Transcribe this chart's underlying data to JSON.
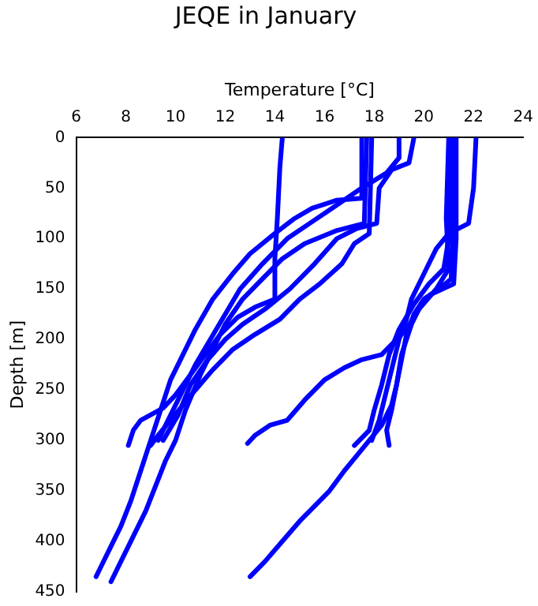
{
  "chart_data": {
    "type": "line",
    "title": "JEQE in January",
    "xlabel": "Temperature [°C]",
    "ylabel": "Depth [m]",
    "xlim": [
      6,
      24
    ],
    "xticks": [
      6,
      8,
      10,
      12,
      14,
      16,
      18,
      20,
      22,
      24
    ],
    "ylim": [
      450,
      0
    ],
    "yticks": [
      0,
      50,
      100,
      150,
      200,
      250,
      300,
      350,
      400,
      450
    ],
    "grid": false,
    "legend": false,
    "marker": "none",
    "line_style": "solid",
    "series": [
      {
        "color": "#0000ff",
        "x": [
          14.3,
          14.2,
          14.1,
          14.0,
          14.0,
          13.2,
          12.5,
          11.8,
          11.2,
          10.6,
          10.0,
          9.5,
          8.6,
          8.3,
          8.1
        ],
        "values": [
          0,
          30,
          80,
          120,
          160,
          168,
          178,
          195,
          215,
          235,
          255,
          268,
          280,
          290,
          305
        ]
      },
      {
        "color": "#0000ff",
        "x": [
          17.5,
          17.5,
          16.5,
          15.5,
          14.8,
          14.0,
          13.0,
          12.3,
          11.5,
          10.8,
          10.3,
          9.8,
          9.4,
          9.0,
          8.6,
          8.2,
          7.8,
          7.4,
          7.0,
          6.8
        ],
        "values": [
          0,
          60,
          62,
          70,
          80,
          95,
          115,
          135,
          160,
          190,
          215,
          240,
          270,
          300,
          330,
          360,
          385,
          405,
          425,
          435
        ]
      },
      {
        "color": "#0000ff",
        "x": [
          17.7,
          17.6,
          16.5,
          15.2,
          14.3,
          13.5,
          12.7,
          12.0,
          11.5,
          11.0,
          10.4,
          10.0,
          9.6,
          9.2,
          8.8,
          8.3,
          7.8,
          7.4
        ],
        "values": [
          0,
          85,
          92,
          105,
          120,
          140,
          160,
          185,
          210,
          235,
          270,
          300,
          320,
          345,
          370,
          395,
          420,
          440
        ]
      },
      {
        "color": "#0000ff",
        "x": [
          17.9,
          17.8,
          17.2,
          16.7,
          15.8,
          15.0,
          14.2,
          13.2,
          12.3,
          11.5,
          10.8,
          10.3,
          9.8,
          9.3,
          9.0
        ],
        "values": [
          0,
          95,
          105,
          125,
          145,
          160,
          180,
          195,
          210,
          230,
          250,
          265,
          280,
          295,
          305
        ]
      },
      {
        "color": "#0000ff",
        "x": [
          19.0,
          19.0,
          18.5,
          17.5,
          16.3,
          15.4,
          14.5,
          13.5,
          12.6,
          12.0,
          11.4,
          10.8,
          10.3,
          9.8,
          9.3
        ],
        "values": [
          0,
          20,
          35,
          50,
          70,
          85,
          100,
          125,
          150,
          175,
          200,
          225,
          250,
          275,
          300
        ]
      },
      {
        "color": "#0000ff",
        "x": [
          19.6,
          19.4,
          18.7,
          18.2,
          18.1,
          17.3,
          16.5,
          15.6,
          14.6,
          13.6,
          12.7,
          12.0,
          11.3,
          10.6,
          10.1,
          9.5
        ],
        "values": [
          0,
          25,
          32,
          50,
          85,
          90,
          100,
          125,
          150,
          170,
          185,
          200,
          220,
          245,
          275,
          300
        ]
      },
      {
        "color": "#0000ff",
        "x": [
          22.1,
          22.0,
          21.8,
          21.0,
          20.5,
          20.2,
          19.9,
          19.5,
          19.3,
          19.0,
          18.8,
          18.6,
          18.4,
          18.2,
          17.9
        ],
        "values": [
          0,
          50,
          85,
          95,
          110,
          125,
          140,
          160,
          180,
          200,
          220,
          240,
          260,
          280,
          300
        ]
      },
      {
        "color": "#0000ff",
        "x": [
          21.2,
          21.2,
          21.1,
          20.6,
          20.0,
          19.6,
          19.3,
          19.1,
          18.9,
          18.7,
          18.3,
          17.8,
          17.3,
          16.8,
          16.2,
          15.6,
          15.0,
          14.3,
          13.6,
          13.0
        ],
        "values": [
          0,
          60,
          140,
          150,
          160,
          175,
          195,
          220,
          245,
          265,
          285,
          300,
          315,
          330,
          350,
          365,
          380,
          400,
          420,
          435
        ]
      },
      {
        "color": "#0000ff",
        "x": [
          21.0,
          20.9,
          21.0,
          20.5,
          19.8,
          19.3,
          18.3,
          17.5,
          16.8,
          16.0,
          15.2,
          14.5,
          13.8,
          13.2,
          12.9
        ],
        "values": [
          0,
          80,
          130,
          150,
          170,
          190,
          215,
          220,
          228,
          240,
          260,
          280,
          285,
          295,
          303
        ]
      },
      {
        "color": "#0000ff",
        "x": [
          21.3,
          21.3,
          21.2,
          20.3,
          19.9,
          19.5,
          19.1,
          18.9,
          18.7,
          18.5,
          18.6
        ],
        "values": [
          0,
          100,
          145,
          155,
          165,
          185,
          215,
          245,
          270,
          290,
          305
        ]
      },
      {
        "color": "#0000ff",
        "x": [
          21.1,
          21.0,
          20.8,
          20.2,
          19.6,
          19.0,
          18.6,
          18.3,
          18.0,
          17.8,
          17.2
        ],
        "values": [
          0,
          100,
          130,
          145,
          165,
          190,
          215,
          245,
          270,
          290,
          305
        ]
      }
    ]
  }
}
